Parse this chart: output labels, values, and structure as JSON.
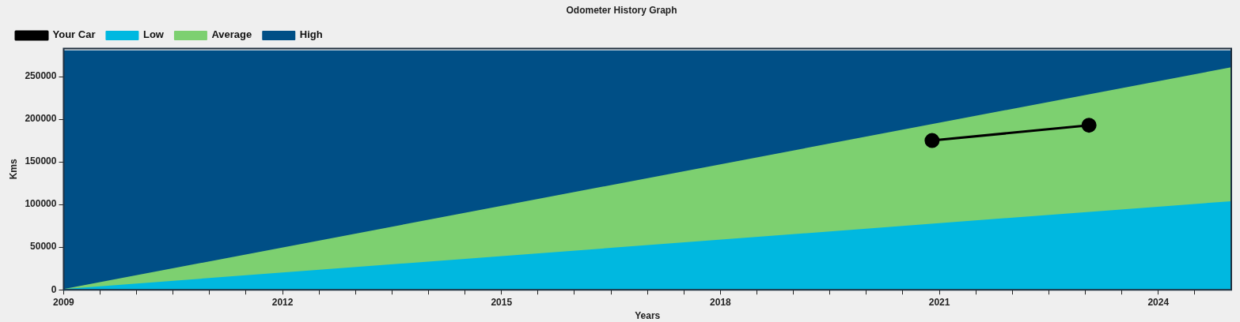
{
  "chart_data": {
    "type": "area",
    "title": "Odometer History Graph",
    "xlabel": "Years",
    "ylabel": "Kms",
    "xlim": [
      2009,
      2025
    ],
    "xticks": [
      2009,
      {
        "value": 2009.5,
        "label": null
      },
      {
        "value": 2010,
        "label": null
      },
      {
        "value": 2010.5,
        "label": null
      },
      {
        "value": 2011,
        "label": null
      },
      {
        "value": 2011.5,
        "label": null
      },
      2012,
      {
        "value": 2012.5,
        "label": null
      },
      {
        "value": 2013,
        "label": null
      },
      {
        "value": 2013.5,
        "label": null
      },
      {
        "value": 2014,
        "label": null
      },
      {
        "value": 2014.5,
        "label": null
      },
      2015,
      {
        "value": 2015.5,
        "label": null
      },
      {
        "value": 2016,
        "label": null
      },
      {
        "value": 2016.5,
        "label": null
      },
      {
        "value": 2017,
        "label": null
      },
      {
        "value": 2017.5,
        "label": null
      },
      2018,
      {
        "value": 2018.5,
        "label": null
      },
      {
        "value": 2019,
        "label": null
      },
      {
        "value": 2019.5,
        "label": null
      },
      {
        "value": 2020,
        "label": null
      },
      {
        "value": 2020.5,
        "label": null
      },
      2021,
      {
        "value": 2021.5,
        "label": null
      },
      {
        "value": 2022,
        "label": null
      },
      {
        "value": 2022.5,
        "label": null
      },
      {
        "value": 2023,
        "label": null
      },
      {
        "value": 2023.5,
        "label": null
      },
      2024,
      {
        "value": 2024.5,
        "label": null
      }
    ],
    "ylim": [
      0,
      283000
    ],
    "yticks": [
      0,
      50000,
      100000,
      150000,
      200000,
      250000
    ],
    "legend": "top left",
    "series": [
      {
        "name": "Your Car",
        "type": "line",
        "marker": "circle",
        "color": "#000000",
        "x": [
          2020.9,
          2023.05
        ],
        "values": [
          175000,
          193000
        ]
      },
      {
        "name": "Low",
        "color": "#00b8e0",
        "x": [
          2009,
          2025
        ],
        "values": [
          0,
          103000
        ]
      },
      {
        "name": "Average",
        "color": "#7dd070",
        "x": [
          2009,
          2025
        ],
        "values": [
          0,
          260000
        ]
      },
      {
        "name": "High",
        "color": "#004f86",
        "x": [
          2009,
          2025
        ],
        "values": [
          280000,
          280000
        ]
      }
    ]
  }
}
